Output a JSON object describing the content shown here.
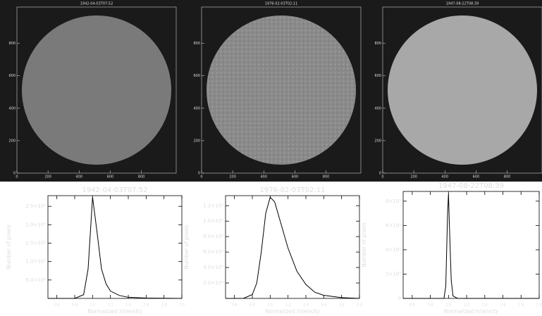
{
  "images": [
    {
      "title": "1942-04-03T07:52",
      "xlim": [
        0,
        1024
      ],
      "ylim": [
        0,
        1024
      ],
      "xticks": [
        0,
        200,
        400,
        600,
        800
      ],
      "yticks": [
        0,
        200,
        400,
        600,
        800
      ],
      "disk_color": "#7a7a7a"
    },
    {
      "title": "1976-02-03T02:11",
      "xlim": [
        0,
        1024
      ],
      "ylim": [
        0,
        1024
      ],
      "xticks": [
        0,
        200,
        400,
        600,
        800
      ],
      "yticks": [
        0,
        200,
        400,
        600,
        800
      ],
      "disk_color": "#8a8a8a"
    },
    {
      "title": "1947-08-22T08:39",
      "xlim": [
        0,
        1024
      ],
      "ylim": [
        0,
        1024
      ],
      "xticks": [
        0,
        200,
        400,
        600,
        800
      ],
      "yticks": [
        0,
        200,
        400,
        600,
        800
      ],
      "disk_color": "#a8a8a8"
    }
  ],
  "chart_data": [
    {
      "type": "line",
      "title": "1942-04-03T07:52",
      "x_label": "Normalized Intensity",
      "y_label": "Number of pixels",
      "color": "#000000",
      "x": [
        0.5,
        0.8,
        0.9,
        0.95,
        1.0,
        1.05,
        1.1,
        1.15,
        1.2,
        1.3,
        1.4,
        1.6,
        2.0
      ],
      "values": [
        0,
        0,
        10000,
        80000,
        275000,
        180000,
        80000,
        40000,
        20000,
        8000,
        3000,
        1000,
        0
      ],
      "xlim": [
        0.5,
        2.0
      ],
      "ylim": [
        0,
        279000
      ],
      "xticks": [
        0.6,
        0.8,
        {
          "value": 1.0,
          "label": "1.0"
        },
        1.2,
        1.4,
        1.6,
        1.8,
        {
          "value": 2.0,
          "label": "2.0"
        }
      ],
      "yticks": [
        {
          "value": 50000,
          "label": "5.0×10⁴"
        },
        {
          "value": 100000,
          "label": "1.0×10⁵"
        },
        {
          "value": 150000,
          "label": "1.5×10⁵"
        },
        {
          "value": 200000,
          "label": "2.0×10⁵"
        },
        {
          "value": 250000,
          "label": "2.5×10⁵"
        }
      ]
    },
    {
      "type": "line",
      "title": "1976-02-03T02:11",
      "x_label": "Normalized Intensity",
      "y_label": "Number of pixels",
      "color": "#000000",
      "x": [
        0.5,
        0.7,
        0.8,
        0.85,
        0.9,
        0.95,
        1.0,
        1.05,
        1.1,
        1.2,
        1.3,
        1.4,
        1.5,
        1.6,
        1.8,
        2.0
      ],
      "values": [
        0,
        0,
        5000,
        20000,
        60000,
        110000,
        131000,
        125000,
        105000,
        65000,
        35000,
        18000,
        8000,
        4000,
        1000,
        0
      ],
      "xlim": [
        0.5,
        2.0
      ],
      "ylim": [
        0,
        133000
      ],
      "xticks": [
        0.6,
        0.8,
        {
          "value": 1.0,
          "label": "1.0"
        },
        1.2,
        1.4,
        1.6,
        1.8,
        {
          "value": 2.0,
          "label": "2.0"
        }
      ],
      "yticks": [
        {
          "value": 20000,
          "label": "2.0×10⁴"
        },
        {
          "value": 40000,
          "label": "4.0×10⁴"
        },
        {
          "value": 60000,
          "label": "6.0×10⁴"
        },
        {
          "value": 80000,
          "label": "8.0×10⁴"
        },
        {
          "value": 100000,
          "label": "1.0×10⁵"
        },
        {
          "value": 120000,
          "label": "1.2×10⁵"
        }
      ]
    },
    {
      "type": "line",
      "title": "1947-08-22T08:39",
      "x_label": "Normalized Intensity",
      "y_label": "Number of pixels",
      "color": "#000000",
      "x": [
        0.5,
        0.95,
        0.97,
        0.99,
        1.0,
        1.01,
        1.03,
        1.05,
        1.1,
        2.0
      ],
      "values": [
        0,
        0,
        100000,
        700000,
        860000,
        600000,
        150000,
        20000,
        0,
        0
      ],
      "xlim": [
        0.5,
        2.0
      ],
      "ylim": [
        0,
        880000
      ],
      "xticks": [
        0.6,
        0.8,
        {
          "value": 1.0,
          "label": "1.0"
        },
        1.2,
        1.4,
        1.6,
        1.8,
        {
          "value": 2.0,
          "label": "2.0"
        }
      ],
      "yticks": [
        0,
        {
          "value": 200000,
          "label": "2×10⁵"
        },
        {
          "value": 400000,
          "label": "4×10⁵"
        },
        {
          "value": 600000,
          "label": "6×10⁵"
        },
        {
          "value": 800000,
          "label": "8×10⁵"
        }
      ]
    }
  ]
}
